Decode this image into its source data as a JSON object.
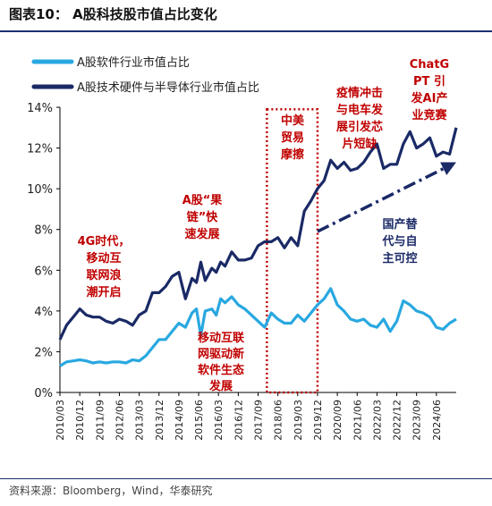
{
  "title": "图表10： A股科技股市值占比变化",
  "source": "资料来源：Bloomberg，Wind，华泰研究",
  "colors": {
    "software": "#29a8e0",
    "hardware": "#1a2a66",
    "annotation": "#c00000",
    "annotation_blue": "#1a2a66"
  },
  "chart_data": {
    "type": "line",
    "title": "",
    "xlabel": "",
    "ylabel": "",
    "x_start": "2010-03",
    "x_end": "2025-03",
    "x_ticks": [
      "2010/03",
      "2010/12",
      "2011/09",
      "2012/06",
      "2013/03",
      "2013/12",
      "2014/09",
      "2015/06",
      "2016/03",
      "2016/12",
      "2017/09",
      "2018/06",
      "2019/03",
      "2019/12",
      "2020/09",
      "2021/06",
      "2022/03",
      "2022/12",
      "2023/09",
      "2024/06"
    ],
    "ylim": [
      0,
      14
    ],
    "y_ticks": [
      "0%",
      "2%",
      "4%",
      "6%",
      "8%",
      "10%",
      "12%",
      "14%"
    ],
    "legend": "top-left",
    "grid": false,
    "series": [
      {
        "name": "A股软件行业市值占比",
        "color": "#29a8e0",
        "points": [
          [
            "2010-03",
            1.3
          ],
          [
            "2010-06",
            1.5
          ],
          [
            "2010-09",
            1.55
          ],
          [
            "2010-12",
            1.6
          ],
          [
            "2011-03",
            1.55
          ],
          [
            "2011-06",
            1.45
          ],
          [
            "2011-09",
            1.5
          ],
          [
            "2011-12",
            1.45
          ],
          [
            "2012-03",
            1.5
          ],
          [
            "2012-06",
            1.5
          ],
          [
            "2012-09",
            1.45
          ],
          [
            "2012-12",
            1.6
          ],
          [
            "2013-03",
            1.55
          ],
          [
            "2013-06",
            1.8
          ],
          [
            "2013-09",
            2.2
          ],
          [
            "2013-12",
            2.6
          ],
          [
            "2014-03",
            2.6
          ],
          [
            "2014-06",
            3.0
          ],
          [
            "2014-09",
            3.4
          ],
          [
            "2014-12",
            3.2
          ],
          [
            "2015-03",
            3.9
          ],
          [
            "2015-05",
            4.1
          ],
          [
            "2015-07",
            2.8
          ],
          [
            "2015-09",
            4.0
          ],
          [
            "2015-12",
            4.1
          ],
          [
            "2016-02",
            3.8
          ],
          [
            "2016-04",
            4.6
          ],
          [
            "2016-06",
            4.4
          ],
          [
            "2016-09",
            4.7
          ],
          [
            "2016-12",
            4.3
          ],
          [
            "2017-03",
            4.1
          ],
          [
            "2017-06",
            3.8
          ],
          [
            "2017-09",
            3.5
          ],
          [
            "2017-12",
            3.2
          ],
          [
            "2018-03",
            3.9
          ],
          [
            "2018-06",
            3.6
          ],
          [
            "2018-09",
            3.4
          ],
          [
            "2018-12",
            3.4
          ],
          [
            "2019-03",
            3.8
          ],
          [
            "2019-06",
            3.5
          ],
          [
            "2019-09",
            3.9
          ],
          [
            "2019-12",
            4.3
          ],
          [
            "2020-03",
            4.6
          ],
          [
            "2020-06",
            5.1
          ],
          [
            "2020-09",
            4.3
          ],
          [
            "2020-12",
            4.0
          ],
          [
            "2021-03",
            3.6
          ],
          [
            "2021-06",
            3.5
          ],
          [
            "2021-09",
            3.6
          ],
          [
            "2021-12",
            3.3
          ],
          [
            "2022-03",
            3.2
          ],
          [
            "2022-06",
            3.6
          ],
          [
            "2022-09",
            3.0
          ],
          [
            "2022-12",
            3.5
          ],
          [
            "2023-03",
            4.5
          ],
          [
            "2023-06",
            4.3
          ],
          [
            "2023-09",
            4.0
          ],
          [
            "2023-12",
            3.9
          ],
          [
            "2024-03",
            3.7
          ],
          [
            "2024-06",
            3.2
          ],
          [
            "2024-09",
            3.1
          ],
          [
            "2024-12",
            3.4
          ],
          [
            "2025-03",
            3.6
          ]
        ]
      },
      {
        "name": "A股技术硬件与半导体行业市值占比",
        "color": "#1a2a66",
        "points": [
          [
            "2010-03",
            2.6
          ],
          [
            "2010-06",
            3.3
          ],
          [
            "2010-09",
            3.7
          ],
          [
            "2010-12",
            4.1
          ],
          [
            "2011-03",
            3.8
          ],
          [
            "2011-06",
            3.7
          ],
          [
            "2011-09",
            3.7
          ],
          [
            "2011-12",
            3.5
          ],
          [
            "2012-03",
            3.4
          ],
          [
            "2012-06",
            3.6
          ],
          [
            "2012-09",
            3.5
          ],
          [
            "2012-12",
            3.3
          ],
          [
            "2013-03",
            3.8
          ],
          [
            "2013-06",
            4.0
          ],
          [
            "2013-09",
            4.9
          ],
          [
            "2013-12",
            4.9
          ],
          [
            "2014-03",
            5.2
          ],
          [
            "2014-06",
            5.7
          ],
          [
            "2014-09",
            5.9
          ],
          [
            "2014-12",
            4.6
          ],
          [
            "2015-03",
            5.6
          ],
          [
            "2015-05",
            5.4
          ],
          [
            "2015-07",
            6.4
          ],
          [
            "2015-09",
            5.5
          ],
          [
            "2015-12",
            6.1
          ],
          [
            "2016-02",
            5.9
          ],
          [
            "2016-04",
            6.4
          ],
          [
            "2016-06",
            6.2
          ],
          [
            "2016-09",
            6.9
          ],
          [
            "2016-12",
            6.5
          ],
          [
            "2017-03",
            6.5
          ],
          [
            "2017-06",
            6.6
          ],
          [
            "2017-09",
            7.2
          ],
          [
            "2017-12",
            7.4
          ],
          [
            "2018-03",
            7.4
          ],
          [
            "2018-06",
            7.6
          ],
          [
            "2018-09",
            7.1
          ],
          [
            "2018-12",
            7.6
          ],
          [
            "2019-03",
            7.2
          ],
          [
            "2019-06",
            8.9
          ],
          [
            "2019-09",
            9.4
          ],
          [
            "2019-12",
            10.0
          ],
          [
            "2020-03",
            10.4
          ],
          [
            "2020-06",
            11.4
          ],
          [
            "2020-09",
            11.0
          ],
          [
            "2020-12",
            11.3
          ],
          [
            "2021-03",
            10.9
          ],
          [
            "2021-06",
            11.0
          ],
          [
            "2021-09",
            11.3
          ],
          [
            "2021-12",
            11.8
          ],
          [
            "2022-03",
            12.2
          ],
          [
            "2022-06",
            11.0
          ],
          [
            "2022-09",
            11.2
          ],
          [
            "2022-12",
            11.2
          ],
          [
            "2023-03",
            12.2
          ],
          [
            "2023-06",
            12.8
          ],
          [
            "2023-09",
            12.0
          ],
          [
            "2023-12",
            12.2
          ],
          [
            "2024-03",
            12.5
          ],
          [
            "2024-06",
            11.6
          ],
          [
            "2024-09",
            11.8
          ],
          [
            "2024-12",
            11.7
          ],
          [
            "2025-03",
            13.0
          ]
        ]
      }
    ],
    "highlight_box": {
      "x_start": "2018-01",
      "x_end": "2019-12",
      "y_min": 0,
      "y_max": 13.9
    },
    "trend_arrow": {
      "from": [
        "2019-12",
        7.9
      ],
      "to": [
        "2025-03",
        11.3
      ]
    },
    "annotations": [
      {
        "lines": [
          "4G时代，",
          "移动互",
          "联网浪",
          "潮开启"
        ],
        "color": "#c00000"
      },
      {
        "lines": [
          "A股“果",
          "链”快",
          "速发展"
        ],
        "color": "#c00000"
      },
      {
        "lines": [
          "移动互联",
          "网驱动新",
          "软件生态",
          "发展"
        ],
        "color": "#c00000"
      },
      {
        "lines": [
          "中美",
          "贸易",
          "摩擦"
        ],
        "color": "#c00000"
      },
      {
        "lines": [
          "疫情冲击",
          "与电车发",
          "展引发芯",
          "片短缺"
        ],
        "color": "#c00000"
      },
      {
        "lines": [
          "ChatG",
          "PT 引",
          "发AI产",
          "业竞赛"
        ],
        "color": "#c00000"
      },
      {
        "lines": [
          "国产替",
          "代与自",
          "主可控"
        ],
        "color": "#1a2a66"
      }
    ]
  }
}
